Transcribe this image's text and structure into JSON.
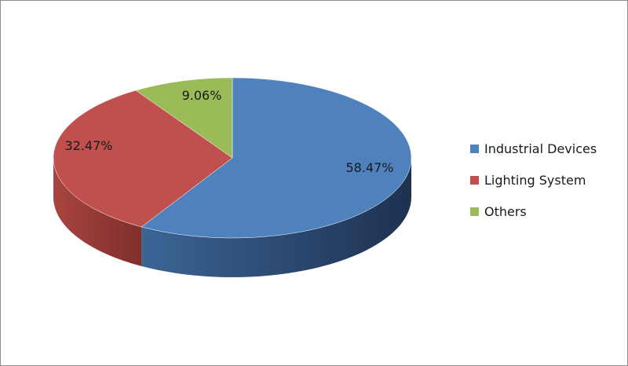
{
  "chart_data": {
    "type": "pie",
    "style": "3d",
    "categories": [
      "Industrial Devices",
      "Lighting System",
      "Others"
    ],
    "values": [
      58.47,
      32.47,
      9.06
    ],
    "data_labels": [
      "58.47%",
      "32.47%",
      "9.06%"
    ],
    "colors": [
      "#4f81bd",
      "#c0504d",
      "#9bbb59"
    ],
    "legend_position": "right"
  }
}
